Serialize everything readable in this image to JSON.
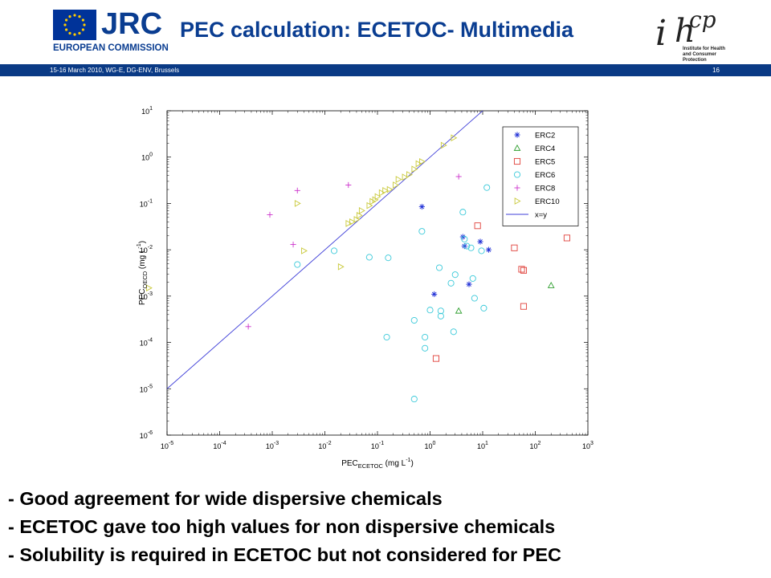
{
  "header": {
    "logo_text": "JRC",
    "organization": "EUROPEAN COMMISSION",
    "title": "PEC calculation: ECETOC- Multimedia",
    "institute_logo_text": "ihcp",
    "institute_name_line1": "Institute for Health",
    "institute_name_line2": "and Consumer Protection"
  },
  "info_bar": {
    "event": "15-16 March 2010, WG-E, DG-ENV, Brussels",
    "slide_number": "16"
  },
  "chart_data": {
    "type": "scatter",
    "xlabel_main": "PEC",
    "xlabel_sub": "ECETOC",
    "xlabel_unit": " (mg L",
    "ylabel_main": "PEC",
    "ylabel_sub": "OECD",
    "ylabel_unit": " (mg L",
    "unit_exponent": "-1",
    "x_log_range": [
      -5,
      3
    ],
    "y_log_range": [
      -6,
      1
    ],
    "x_scale": "log",
    "y_scale": "log",
    "grid": false,
    "legend_position": "top-right",
    "x_ticks": [
      "-5",
      "-4",
      "-3",
      "-2",
      "-1",
      "0",
      "1",
      "2",
      "3"
    ],
    "y_ticks": [
      "-6",
      "-5",
      "-4",
      "-3",
      "-2",
      "-1",
      "0",
      "1"
    ],
    "tick_base": "10",
    "series": [
      {
        "name": "ERC2",
        "marker": "star",
        "color": "#1f2fd6",
        "points": [
          [
            0.7,
            0.085
          ],
          [
            1.2,
            0.0011
          ],
          [
            4.2,
            0.019
          ],
          [
            4.5,
            0.012
          ],
          [
            5.5,
            0.0018
          ],
          [
            9.0,
            0.015
          ],
          [
            13.0,
            0.01
          ]
        ]
      },
      {
        "name": "ERC4",
        "marker": "triangle",
        "color": "#2e9e2e",
        "points": [
          [
            3.5,
            0.00048
          ],
          [
            200,
            0.0017
          ]
        ]
      },
      {
        "name": "ERC5",
        "marker": "square",
        "color": "#e0403a",
        "points": [
          [
            1.3,
            4.5e-05
          ],
          [
            8.0,
            0.033
          ],
          [
            40,
            0.011
          ],
          [
            55,
            0.0038
          ],
          [
            60,
            0.0036
          ],
          [
            60,
            0.0006
          ],
          [
            400,
            0.018
          ]
        ]
      },
      {
        "name": "ERC6",
        "marker": "circle",
        "color": "#39c9d9",
        "points": [
          [
            0.003,
            0.0048
          ],
          [
            0.015,
            0.0095
          ],
          [
            0.07,
            0.0069
          ],
          [
            0.16,
            0.0067
          ],
          [
            0.15,
            0.00013
          ],
          [
            0.5,
            0.0003
          ],
          [
            0.5,
            6e-06
          ],
          [
            0.7,
            0.025
          ],
          [
            0.8,
            0.00013
          ],
          [
            0.8,
            7.5e-05
          ],
          [
            1.0,
            0.0005
          ],
          [
            1.5,
            0.0041
          ],
          [
            1.6,
            0.00048
          ],
          [
            1.6,
            0.00037
          ],
          [
            2.5,
            0.0019
          ],
          [
            2.8,
            0.00017
          ],
          [
            3.0,
            0.0029
          ],
          [
            4.2,
            0.065
          ],
          [
            4.5,
            0.017
          ],
          [
            5.0,
            0.012
          ],
          [
            6.0,
            0.011
          ],
          [
            6.5,
            0.0024
          ],
          [
            7.0,
            0.0009
          ],
          [
            9.5,
            0.0095
          ],
          [
            10.5,
            0.00055
          ],
          [
            12,
            0.22
          ]
        ]
      },
      {
        "name": "ERC8",
        "marker": "plus",
        "color": "#cc33cc",
        "points": [
          [
            0.00035,
            0.00022
          ],
          [
            0.0009,
            0.057
          ],
          [
            0.0025,
            0.013
          ],
          [
            0.003,
            0.19
          ],
          [
            0.028,
            0.25
          ],
          [
            3.5,
            0.38
          ]
        ]
      },
      {
        "name": "ERC10",
        "marker": "triangle-right",
        "color": "#c9c93a",
        "points": [
          [
            4.5e-06,
            0.0015
          ],
          [
            0.003,
            0.1
          ],
          [
            0.004,
            0.0095
          ],
          [
            0.02,
            0.0043
          ],
          [
            0.028,
            0.037
          ],
          [
            0.033,
            0.04
          ],
          [
            0.04,
            0.045
          ],
          [
            0.045,
            0.055
          ],
          [
            0.05,
            0.07
          ],
          [
            0.07,
            0.09
          ],
          [
            0.08,
            0.11
          ],
          [
            0.09,
            0.12
          ],
          [
            0.1,
            0.14
          ],
          [
            0.12,
            0.17
          ],
          [
            0.14,
            0.19
          ],
          [
            0.17,
            0.2
          ],
          [
            0.22,
            0.25
          ],
          [
            0.25,
            0.33
          ],
          [
            0.33,
            0.37
          ],
          [
            0.4,
            0.42
          ],
          [
            0.5,
            0.55
          ],
          [
            0.6,
            0.72
          ],
          [
            0.7,
            0.8
          ],
          [
            1.8,
            1.8
          ],
          [
            2.8,
            2.6
          ]
        ]
      },
      {
        "name": "x=y",
        "marker": "line",
        "color": "#3f3fd8"
      }
    ]
  },
  "bullets": [
    "- Good agreement for wide dispersive chemicals",
    "- ECETOC gave too high values for non dispersive chemicals",
    "- Solubility is required in ECETOC but not considered for PEC"
  ]
}
